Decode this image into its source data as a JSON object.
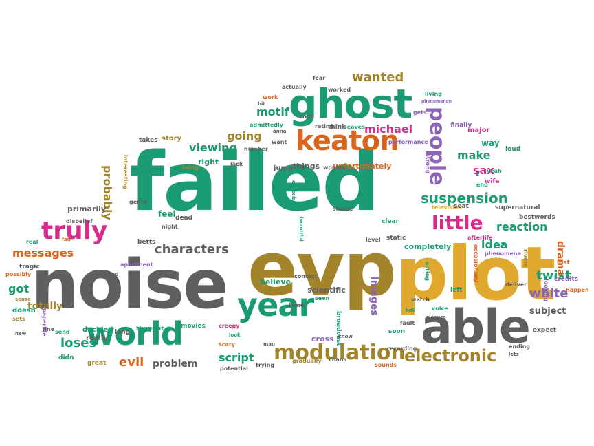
{
  "palette": {
    "teal": "#1a9b73",
    "gray": "#5f5f5f",
    "olive": "#a3842b",
    "gold": "#e0a82e",
    "magenta": "#d62c8c",
    "purple": "#8d63b8",
    "orange": "#d9661f",
    "dark": "#555555"
  },
  "words": [
    {
      "text": "failed",
      "color": "teal"
    },
    {
      "text": "noise",
      "color": "gray"
    },
    {
      "text": "evp",
      "color": "olive"
    },
    {
      "text": "plot",
      "color": "gold"
    },
    {
      "text": "able",
      "color": "gray"
    },
    {
      "text": "ghost",
      "color": "teal"
    },
    {
      "text": "world",
      "color": "teal"
    },
    {
      "text": "year",
      "color": "teal"
    },
    {
      "text": "keaton",
      "color": "orange"
    },
    {
      "text": "modulation",
      "color": "olive"
    },
    {
      "text": "truly",
      "color": "magenta"
    },
    {
      "text": "people",
      "color": "purple"
    },
    {
      "text": "little",
      "color": "magenta"
    },
    {
      "text": "electronic",
      "color": "olive"
    },
    {
      "text": "suspension",
      "color": "teal"
    },
    {
      "text": "wanted",
      "color": "olive"
    },
    {
      "text": "michael",
      "color": "magenta"
    },
    {
      "text": "characters",
      "color": "gray"
    },
    {
      "text": "messages",
      "color": "orange"
    },
    {
      "text": "white",
      "color": "purple"
    },
    {
      "text": "reaction",
      "color": "teal"
    },
    {
      "text": "viewing",
      "color": "teal"
    },
    {
      "text": "going",
      "color": "olive"
    },
    {
      "text": "motif",
      "color": "teal"
    },
    {
      "text": "make",
      "color": "teal"
    },
    {
      "text": "probably",
      "color": "olive"
    },
    {
      "text": "idea",
      "color": "teal"
    },
    {
      "text": "twist",
      "color": "teal"
    },
    {
      "text": "sax",
      "color": "magenta"
    },
    {
      "text": "script",
      "color": "teal"
    },
    {
      "text": "totally",
      "color": "olive"
    },
    {
      "text": "loses",
      "color": "teal"
    },
    {
      "text": "evil",
      "color": "orange"
    },
    {
      "text": "problem",
      "color": "gray"
    },
    {
      "text": "drama",
      "color": "orange"
    },
    {
      "text": "images",
      "color": "purple"
    },
    {
      "text": "subject",
      "color": "gray"
    },
    {
      "text": "got",
      "color": "teal"
    },
    {
      "text": "primarily",
      "color": "gray"
    },
    {
      "text": "completely",
      "color": "teal"
    },
    {
      "text": "scientific",
      "color": "gray"
    },
    {
      "text": "believe",
      "color": "teal"
    },
    {
      "text": "unfortunately",
      "color": "orange"
    },
    {
      "text": "things",
      "color": "gray"
    },
    {
      "text": "story",
      "color": "olive"
    },
    {
      "text": "jump",
      "color": "gray"
    },
    {
      "text": "feel",
      "color": "teal"
    },
    {
      "text": "right",
      "color": "teal"
    },
    {
      "text": "takes",
      "color": "gray"
    },
    {
      "text": "think",
      "color": "gray"
    },
    {
      "text": "leaves",
      "color": "teal"
    },
    {
      "text": "performance",
      "color": "purple"
    },
    {
      "text": "finally",
      "color": "purple"
    },
    {
      "text": "major",
      "color": "magenta"
    },
    {
      "text": "way",
      "color": "teal"
    },
    {
      "text": "loud",
      "color": "teal"
    },
    {
      "text": "wife",
      "color": "magenta"
    },
    {
      "text": "yeah",
      "color": "teal"
    },
    {
      "text": "end",
      "color": "teal"
    },
    {
      "text": "strong",
      "color": "purple"
    },
    {
      "text": "supernatural",
      "color": "gray"
    },
    {
      "text": "television",
      "color": "gold"
    },
    {
      "text": "seat",
      "color": "gray"
    },
    {
      "text": "best",
      "color": "gray"
    },
    {
      "text": "words",
      "color": "gray"
    },
    {
      "text": "afterlife",
      "color": "magenta"
    },
    {
      "text": "phenomena",
      "color": "purple"
    },
    {
      "text": "occasionally",
      "color": "orange"
    },
    {
      "text": "rivers",
      "color": "olive"
    },
    {
      "text": "lost",
      "color": "orange"
    },
    {
      "text": "credits",
      "color": "purple"
    },
    {
      "text": "looking",
      "color": "purple"
    },
    {
      "text": "deliver",
      "color": "gray"
    },
    {
      "text": "left",
      "color": "teal"
    },
    {
      "text": "watch",
      "color": "gray"
    },
    {
      "text": "voice",
      "color": "teal"
    },
    {
      "text": "closure",
      "color": "gray"
    },
    {
      "text": "ending",
      "color": "gray"
    },
    {
      "text": "lets",
      "color": "gray"
    },
    {
      "text": "expect",
      "color": "gray"
    },
    {
      "text": "happen",
      "color": "orange"
    },
    {
      "text": "time",
      "color": "gray"
    },
    {
      "text": "broadcast",
      "color": "teal"
    },
    {
      "text": "seen",
      "color": "teal"
    },
    {
      "text": "cross",
      "color": "purple"
    },
    {
      "text": "know",
      "color": "gray"
    },
    {
      "text": "soon",
      "color": "teal"
    },
    {
      "text": "fault",
      "color": "gray"
    },
    {
      "text": "recording",
      "color": "gray"
    },
    {
      "text": "hell",
      "color": "teal"
    },
    {
      "text": "chaos",
      "color": "gray"
    },
    {
      "text": "sounds",
      "color": "orange"
    },
    {
      "text": "gradually",
      "color": "olive"
    },
    {
      "text": "trying",
      "color": "gray"
    },
    {
      "text": "potential",
      "color": "gray"
    },
    {
      "text": "look",
      "color": "teal"
    },
    {
      "text": "scary",
      "color": "orange"
    },
    {
      "text": "man",
      "color": "gray"
    },
    {
      "text": "creepy",
      "color": "magenta"
    },
    {
      "text": "movies",
      "color": "teal"
    },
    {
      "text": "thought",
      "color": "teal"
    },
    {
      "text": "long",
      "color": "gray"
    },
    {
      "text": "really",
      "color": "gray"
    },
    {
      "text": "decided",
      "color": "teal"
    },
    {
      "text": "great",
      "color": "olive"
    },
    {
      "text": "didn",
      "color": "teal"
    },
    {
      "text": "fine",
      "color": "gray"
    },
    {
      "text": "send",
      "color": "teal"
    },
    {
      "text": "doesn",
      "color": "teal"
    },
    {
      "text": "paperlife",
      "color": "purple"
    },
    {
      "text": "sets",
      "color": "olive"
    },
    {
      "text": "new",
      "color": "gray"
    },
    {
      "text": "sense",
      "color": "olive"
    },
    {
      "text": "possibly",
      "color": "orange"
    },
    {
      "text": "real",
      "color": "teal"
    },
    {
      "text": "tragic",
      "color": "gray"
    },
    {
      "text": "surprised",
      "color": "gray"
    },
    {
      "text": "apartment",
      "color": "purple"
    },
    {
      "text": "betts",
      "color": "gray"
    },
    {
      "text": "night",
      "color": "gray"
    },
    {
      "text": "dead",
      "color": "gray"
    },
    {
      "text": "genre",
      "color": "gray"
    },
    {
      "text": "disbelief",
      "color": "gray"
    },
    {
      "text": "fan",
      "color": "orange"
    },
    {
      "text": "bring",
      "color": "olive"
    },
    {
      "text": "interesting",
      "color": "olive"
    },
    {
      "text": "jack",
      "color": "gray"
    },
    {
      "text": "number",
      "color": "gray"
    },
    {
      "text": "want",
      "color": "gray"
    },
    {
      "text": "sixth",
      "color": "gray"
    },
    {
      "text": "rating",
      "color": "gray"
    },
    {
      "text": "anna",
      "color": "gray"
    },
    {
      "text": "admittedly",
      "color": "teal"
    },
    {
      "text": "bit",
      "color": "gray"
    },
    {
      "text": "work",
      "color": "orange"
    },
    {
      "text": "actually",
      "color": "gray"
    },
    {
      "text": "fear",
      "color": "gray"
    },
    {
      "text": "worked",
      "color": "gray"
    },
    {
      "text": "living",
      "color": "teal"
    },
    {
      "text": "phenomenon",
      "color": "purple"
    },
    {
      "text": "gets",
      "color": "purple"
    },
    {
      "text": "shame",
      "color": "gray"
    },
    {
      "text": "clear",
      "color": "teal"
    },
    {
      "text": "static",
      "color": "gray"
    },
    {
      "text": "level",
      "color": "gray"
    },
    {
      "text": "contact",
      "color": "gray"
    },
    {
      "text": "wouldn",
      "color": "gray"
    },
    {
      "text": "especially",
      "color": "teal"
    },
    {
      "text": "beautiful",
      "color": "teal"
    },
    {
      "text": "tv",
      "color": "gray"
    },
    {
      "text": "acting",
      "color": "teal"
    }
  ]
}
